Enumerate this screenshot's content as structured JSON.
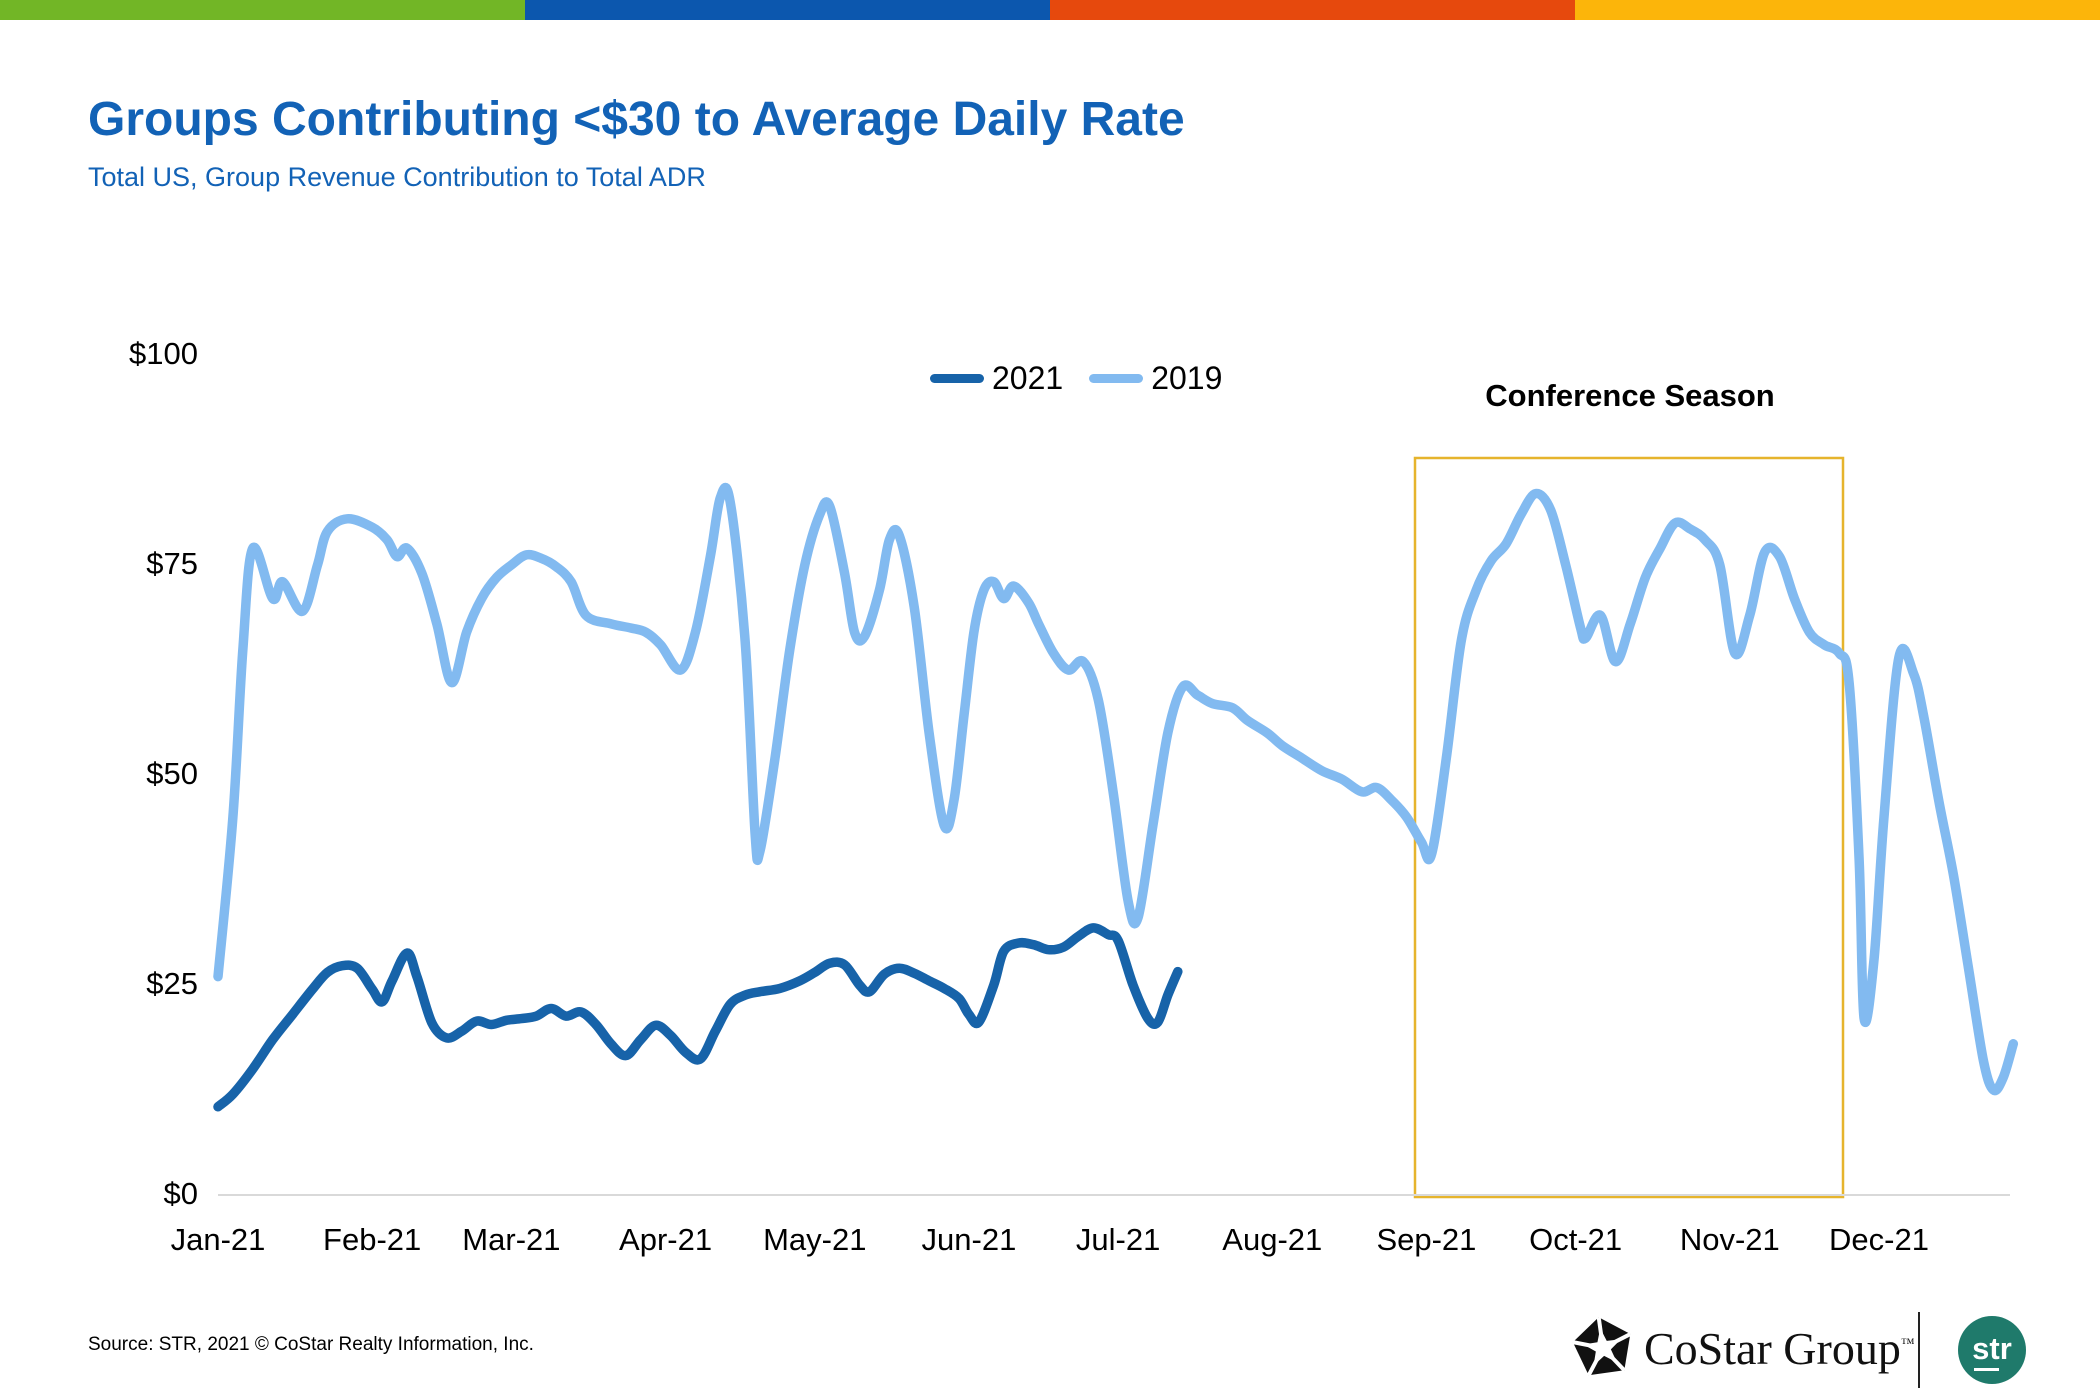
{
  "slide": {
    "title": "Groups Contributing <$30 to Average Daily Rate",
    "subtitle": "Total US, Group Revenue Contribution to Total ADR",
    "source": "Source: STR, 2021 © CoStar Realty Information, Inc.",
    "title_color": "#1262B6",
    "brand_bar_colors": [
      "#72B626",
      "#0C57AE",
      "#E6490D",
      "#FCB50A"
    ],
    "footer": {
      "costar_text": "CoStar Group",
      "trademark": "™",
      "str_text": "str",
      "str_circle_color": "#1F7A6B"
    }
  },
  "chart_data": {
    "type": "line",
    "title": "Groups Contributing <$30 to Average Daily Rate",
    "subtitle": "Total US, Group Revenue Contribution to Total ADR",
    "xlabel": "",
    "ylabel": "",
    "ylim": [
      0,
      100
    ],
    "grid": false,
    "legend_position": "top-center",
    "axis_line_color": "#D9D9D9",
    "y_ticks": [
      {
        "label": "$0",
        "value": 0
      },
      {
        "label": "$25",
        "value": 25
      },
      {
        "label": "$50",
        "value": 50
      },
      {
        "label": "$75",
        "value": 75
      },
      {
        "label": "$100",
        "value": 100
      }
    ],
    "x_ticks": [
      {
        "label": "Jan-21",
        "day": 0
      },
      {
        "label": "Feb-21",
        "day": 31
      },
      {
        "label": "Mar-21",
        "day": 59
      },
      {
        "label": "Apr-21",
        "day": 90
      },
      {
        "label": "May-21",
        "day": 120
      },
      {
        "label": "Jun-21",
        "day": 151
      },
      {
        "label": "Jul-21",
        "day": 181
      },
      {
        "label": "Aug-21",
        "day": 212
      },
      {
        "label": "Sep-21",
        "day": 243
      },
      {
        "label": "Oct-21",
        "day": 273
      },
      {
        "label": "Nov-21",
        "day": 304
      },
      {
        "label": "Dec-21",
        "day": 334
      }
    ],
    "annotation": {
      "label": "Conference Season",
      "box_color": "#E6B42C",
      "box_span": "Sep-21 through late Nov-21"
    },
    "x_unit": "day_of_year (0 = Jan 1)",
    "series": [
      {
        "name": "2021",
        "color": "#1763A9",
        "points": [
          [
            0,
            10.5
          ],
          [
            3,
            12
          ],
          [
            7,
            15
          ],
          [
            11,
            18.5
          ],
          [
            15,
            21.5
          ],
          [
            19,
            24.5
          ],
          [
            22,
            26.5
          ],
          [
            25,
            27.3
          ],
          [
            28,
            27
          ],
          [
            31,
            24.5
          ],
          [
            33,
            23
          ],
          [
            35,
            25.5
          ],
          [
            38,
            28.8
          ],
          [
            40,
            26
          ],
          [
            43,
            20.5
          ],
          [
            46,
            18.7
          ],
          [
            49,
            19.5
          ],
          [
            52,
            20.7
          ],
          [
            55,
            20.3
          ],
          [
            58,
            20.8
          ],
          [
            61,
            21
          ],
          [
            64,
            21.3
          ],
          [
            67,
            22.2
          ],
          [
            70,
            21.3
          ],
          [
            73,
            21.8
          ],
          [
            76,
            20.3
          ],
          [
            79,
            18
          ],
          [
            82,
            16.6
          ],
          [
            85,
            18.5
          ],
          [
            88,
            20.2
          ],
          [
            91,
            19
          ],
          [
            94,
            17
          ],
          [
            97,
            16.2
          ],
          [
            100,
            19.5
          ],
          [
            103,
            22.7
          ],
          [
            106,
            23.8
          ],
          [
            109,
            24.2
          ],
          [
            113,
            24.6
          ],
          [
            117,
            25.5
          ],
          [
            120,
            26.5
          ],
          [
            123,
            27.6
          ],
          [
            126,
            27.4
          ],
          [
            129,
            25
          ],
          [
            131,
            24.2
          ],
          [
            134,
            26.3
          ],
          [
            137,
            27
          ],
          [
            140,
            26.4
          ],
          [
            143,
            25.5
          ],
          [
            146,
            24.6
          ],
          [
            149,
            23.4
          ],
          [
            151,
            21.5
          ],
          [
            153,
            20.6
          ],
          [
            156,
            25
          ],
          [
            158,
            29
          ],
          [
            161,
            30
          ],
          [
            164,
            29.8
          ],
          [
            167,
            29.2
          ],
          [
            170,
            29.5
          ],
          [
            173,
            30.8
          ],
          [
            176,
            31.8
          ],
          [
            179,
            31
          ],
          [
            181,
            30.3
          ],
          [
            184,
            25
          ],
          [
            187,
            21
          ],
          [
            189,
            20.6
          ],
          [
            191,
            23.8
          ],
          [
            193,
            26.6
          ]
        ]
      },
      {
        "name": "2019",
        "color": "#82BAF0",
        "points": [
          [
            0,
            26
          ],
          [
            3,
            45
          ],
          [
            5,
            65
          ],
          [
            7,
            77
          ],
          [
            11,
            71
          ],
          [
            13,
            73
          ],
          [
            17,
            69.5
          ],
          [
            20,
            75
          ],
          [
            22,
            79
          ],
          [
            26,
            80.5
          ],
          [
            31,
            79.5
          ],
          [
            34,
            78
          ],
          [
            36,
            76
          ],
          [
            38,
            77
          ],
          [
            41,
            74
          ],
          [
            44,
            68
          ],
          [
            47,
            61
          ],
          [
            50,
            67
          ],
          [
            53,
            71
          ],
          [
            56,
            73.5
          ],
          [
            59,
            75
          ],
          [
            62,
            76.2
          ],
          [
            65,
            75.8
          ],
          [
            68,
            74.8
          ],
          [
            71,
            73
          ],
          [
            74,
            69
          ],
          [
            79,
            68
          ],
          [
            83,
            67.5
          ],
          [
            86,
            67
          ],
          [
            89,
            65.5
          ],
          [
            93,
            62.5
          ],
          [
            96,
            67
          ],
          [
            99,
            76
          ],
          [
            101,
            83
          ],
          [
            103,
            82.5
          ],
          [
            106,
            66
          ],
          [
            108,
            43
          ],
          [
            109,
            41
          ],
          [
            112,
            52
          ],
          [
            115,
            65
          ],
          [
            118,
            75
          ],
          [
            121,
            81
          ],
          [
            123,
            82
          ],
          [
            126,
            74
          ],
          [
            128,
            67
          ],
          [
            130,
            66.5
          ],
          [
            133,
            72
          ],
          [
            135,
            78
          ],
          [
            137,
            78.5
          ],
          [
            140,
            70
          ],
          [
            143,
            55
          ],
          [
            146,
            44
          ],
          [
            148,
            47
          ],
          [
            150,
            57
          ],
          [
            152,
            67
          ],
          [
            154,
            72
          ],
          [
            156,
            73
          ],
          [
            158,
            71
          ],
          [
            160,
            72.5
          ],
          [
            163,
            70.5
          ],
          [
            165,
            68
          ],
          [
            168,
            64.5
          ],
          [
            171,
            62.5
          ],
          [
            174,
            63.5
          ],
          [
            177,
            59
          ],
          [
            180,
            48
          ],
          [
            183,
            35
          ],
          [
            185,
            33
          ],
          [
            188,
            44
          ],
          [
            191,
            55
          ],
          [
            194,
            60.5
          ],
          [
            197,
            59.5
          ],
          [
            200,
            58.5
          ],
          [
            204,
            58
          ],
          [
            207,
            56.5
          ],
          [
            211,
            55
          ],
          [
            214,
            53.5
          ],
          [
            218,
            52
          ],
          [
            222,
            50.5
          ],
          [
            226,
            49.5
          ],
          [
            230,
            48
          ],
          [
            233,
            48.5
          ],
          [
            236,
            47
          ],
          [
            239,
            45
          ],
          [
            242,
            42
          ],
          [
            244,
            40.5
          ],
          [
            247,
            52
          ],
          [
            250,
            66
          ],
          [
            253,
            72
          ],
          [
            256,
            75.5
          ],
          [
            259,
            77.5
          ],
          [
            262,
            81
          ],
          [
            265,
            83.5
          ],
          [
            268,
            81.5
          ],
          [
            271,
            75
          ],
          [
            274,
            67.5
          ],
          [
            275,
            66.3
          ],
          [
            278,
            69
          ],
          [
            281,
            63.5
          ],
          [
            284,
            68
          ],
          [
            287,
            73.5
          ],
          [
            290,
            77
          ],
          [
            293,
            80
          ],
          [
            296,
            79.3
          ],
          [
            299,
            78
          ],
          [
            302,
            75
          ],
          [
            305,
            64.5
          ],
          [
            308,
            69
          ],
          [
            311,
            76.5
          ],
          [
            314,
            76
          ],
          [
            317,
            71
          ],
          [
            320,
            67
          ],
          [
            323,
            65.5
          ],
          [
            326,
            64.5
          ],
          [
            328,
            61
          ],
          [
            330,
            40
          ],
          [
            331,
            21
          ],
          [
            333,
            28
          ],
          [
            335,
            45
          ],
          [
            338,
            64
          ],
          [
            341,
            62
          ],
          [
            343,
            57
          ],
          [
            346,
            47
          ],
          [
            349,
            38
          ],
          [
            352,
            27
          ],
          [
            355,
            16
          ],
          [
            357,
            12.5
          ],
          [
            359,
            14
          ],
          [
            361,
            18
          ]
        ]
      }
    ]
  }
}
